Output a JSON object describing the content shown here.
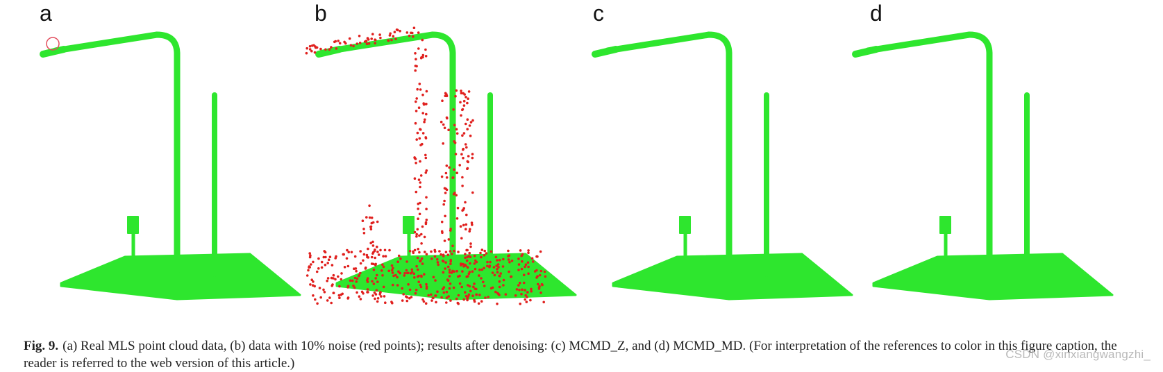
{
  "figure": {
    "panels": [
      {
        "label": "a",
        "content": "raw"
      },
      {
        "label": "b",
        "content": "noisy"
      },
      {
        "label": "c",
        "content": "denoised"
      },
      {
        "label": "d",
        "content": "denoised"
      }
    ],
    "colors": {
      "point_cloud": "#2ee62e",
      "noise_points": "#e0201e",
      "highlight_circle": "#e24b5b"
    }
  },
  "caption": {
    "fig_number": "Fig. 9.",
    "text": "(a) Real MLS point cloud data, (b) data with 10% noise (red points); results after denoising: (c) MCMD_Z, and (d) MCMD_MD. (For interpretation of the references to color in this figure caption, the reader is referred to the web version of this article.)"
  },
  "watermark": "CSDN @xinxiangwangzhi_"
}
